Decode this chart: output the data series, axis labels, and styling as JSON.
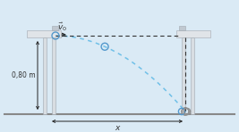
{
  "bg_color": "#daeaf5",
  "fig_width": 2.67,
  "fig_height": 1.48,
  "dpi": 100,
  "table_height_label": "0,80 m",
  "x_label": "x",
  "v0_label": "$\\vec{v}_0$",
  "trajectory_color": "#70c0e8",
  "arrow_color": "#222222",
  "text_color": "#333333",
  "dashed_line_color": "#333333",
  "pillar_light": "#d8dde2",
  "pillar_mid": "#bcc3ca",
  "pillar_dark": "#a0a8b0",
  "shelf_light": "#e0e4e8",
  "shelf_dark": "#c0c8d0",
  "ball_blue": "#5599cc",
  "ball_gray": "#909090",
  "ground_color": "#888888"
}
